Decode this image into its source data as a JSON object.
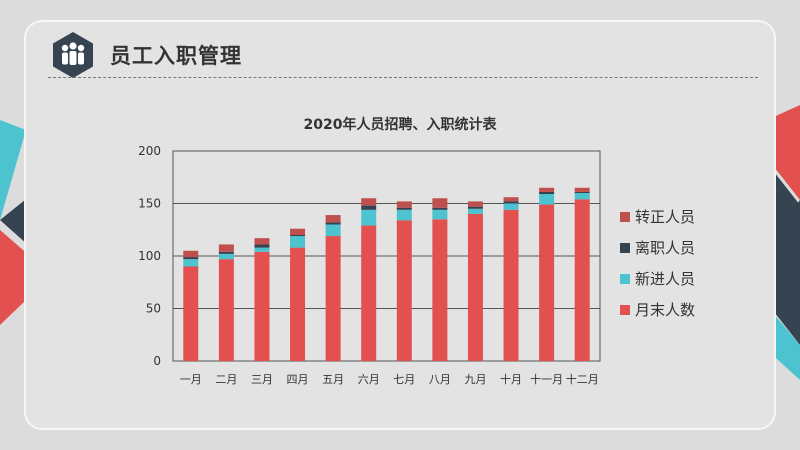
{
  "header": {
    "title": "员工入职管理",
    "icon": "people-group-icon"
  },
  "colors": {
    "red": "#e2504f",
    "dark": "#364350",
    "cyan": "#4cc3cf",
    "darkred": "#c0504d"
  },
  "chart_data": {
    "type": "bar",
    "stacked": true,
    "title": "2020年人员招聘、入职统计表",
    "categories": [
      "一月",
      "二月",
      "三月",
      "四月",
      "五月",
      "六月",
      "七月",
      "八月",
      "九月",
      "十月",
      "十一月",
      "十二月"
    ],
    "ylim": [
      0,
      200
    ],
    "yticks": [
      0,
      50,
      100,
      150,
      200
    ],
    "grid": true,
    "legend_position": "right",
    "series": [
      {
        "name": "月末人数",
        "color": "#e2504f",
        "values": [
          90,
          97,
          104,
          108,
          119,
          129,
          134,
          135,
          140,
          144,
          149,
          154
        ]
      },
      {
        "name": "新进人员",
        "color": "#4cc3cf",
        "values": [
          7,
          5,
          4,
          11,
          11,
          15,
          10,
          9,
          5,
          6,
          10,
          6
        ]
      },
      {
        "name": "离职人员",
        "color": "#364350",
        "values": [
          2,
          2,
          3,
          1,
          2,
          4,
          2,
          2,
          2,
          2,
          2,
          1
        ]
      },
      {
        "name": "转正人员",
        "color": "#c0504d",
        "values": [
          6,
          7,
          6,
          6,
          7,
          7,
          6,
          9,
          5,
          4,
          4,
          4
        ]
      }
    ]
  }
}
